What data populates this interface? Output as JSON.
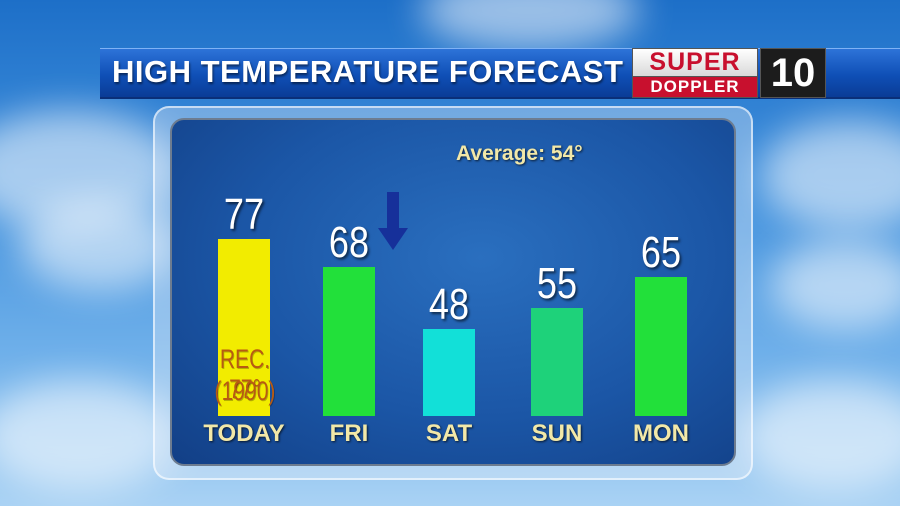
{
  "header": {
    "title": "HIGH TEMPERATURE FORECAST",
    "logo_top": "SUPER",
    "logo_bottom": "DOPPLER",
    "logo_number": "10"
  },
  "average_label": "Average: 54°",
  "record": {
    "line1": "REC. 77°",
    "line2": "(1990)"
  },
  "chart_data": {
    "type": "bar",
    "categories": [
      "TODAY",
      "FRI",
      "SAT",
      "SUN",
      "MON"
    ],
    "values": [
      77,
      68,
      48,
      55,
      65
    ],
    "colors": [
      "#f2ec00",
      "#22e03a",
      "#12e0d8",
      "#1ed27a",
      "#22e03a"
    ],
    "title": "HIGH TEMPERATURE FORECAST",
    "annotations": [
      "Average: 54°",
      "REC. 77° (1990)"
    ],
    "trend_arrow": {
      "after": "FRI",
      "direction": "down",
      "color": "#16309a"
    }
  }
}
